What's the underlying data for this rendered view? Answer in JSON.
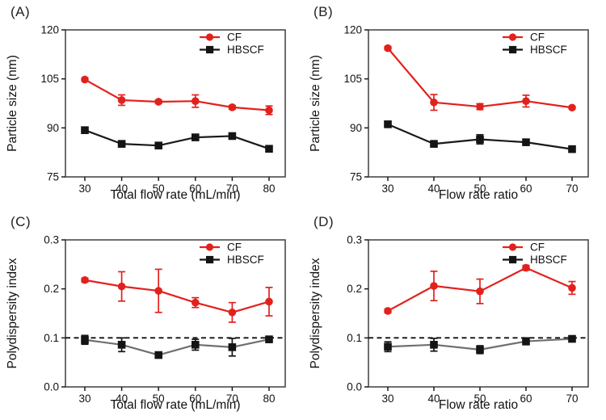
{
  "figure": {
    "background": "#ffffff",
    "colors": {
      "cf_red": "#e2211c",
      "hbscf_black": "#141414",
      "hbscf_gray_line": "#6f6f6f",
      "axis_frame": "#4a4a4a",
      "tick": "#1a1a1a",
      "text": "#111111",
      "dashed_reference": "#111111"
    }
  },
  "chart_data": [
    {
      "type": "line",
      "panel_label": "(A)",
      "xlabel": "Total flow rate (mL/min)",
      "ylabel": "Particle size (nm)",
      "x": [
        30,
        40,
        50,
        60,
        70,
        80
      ],
      "xtick_labels": [
        "30",
        "40",
        "50",
        "60",
        "70",
        "80"
      ],
      "ylim": [
        75,
        120
      ],
      "ytick_values": [
        75,
        90,
        105,
        120
      ],
      "ytick_labels": [
        "75",
        "90",
        "105",
        "120"
      ],
      "grid": false,
      "legend_position": "top-right",
      "legend": [
        "CF",
        "HBSCF"
      ],
      "dashed_y": null,
      "series": [
        {
          "name": "HBSCF",
          "marker": "square",
          "marker_color": "#141414",
          "line_color": "#1a1a1a",
          "values": [
            89.3,
            85.1,
            84.6,
            87.1,
            87.5,
            83.6
          ],
          "errors": [
            0.4,
            0.4,
            0.4,
            0.4,
            0.4,
            0.4
          ]
        },
        {
          "name": "CF",
          "marker": "circle",
          "marker_color": "#e2211c",
          "line_color": "#e2211c",
          "values": [
            104.8,
            98.5,
            98.0,
            98.2,
            96.3,
            95.4
          ],
          "errors": [
            0.5,
            1.6,
            0.5,
            1.9,
            0.6,
            1.3
          ]
        }
      ]
    },
    {
      "type": "line",
      "panel_label": "(B)",
      "xlabel": "Flow rate ratio",
      "ylabel": "Particle size (nm)",
      "x": [
        30,
        40,
        50,
        60,
        70
      ],
      "xtick_labels": [
        "30",
        "40",
        "50",
        "60",
        "70"
      ],
      "ylim": [
        75,
        120
      ],
      "ytick_values": [
        75,
        90,
        105,
        120
      ],
      "ytick_labels": [
        "75",
        "90",
        "105",
        "120"
      ],
      "grid": false,
      "legend_position": "top-right",
      "legend": [
        "CF",
        "HBSCF"
      ],
      "dashed_y": null,
      "series": [
        {
          "name": "HBSCF",
          "marker": "square",
          "marker_color": "#141414",
          "line_color": "#1a1a1a",
          "values": [
            91.1,
            85.1,
            86.5,
            85.6,
            83.5
          ],
          "errors": [
            0.4,
            0.4,
            1.4,
            0.5,
            0.9
          ]
        },
        {
          "name": "CF",
          "marker": "circle",
          "marker_color": "#e2211c",
          "line_color": "#e2211c",
          "values": [
            114.4,
            97.8,
            96.5,
            98.2,
            96.2
          ],
          "errors": [
            0.5,
            2.4,
            0.9,
            1.8,
            0.4
          ]
        }
      ]
    },
    {
      "type": "line",
      "panel_label": "(C)",
      "xlabel": "Total flow rate (mL/min)",
      "ylabel": "Polydispersity index",
      "x": [
        30,
        40,
        50,
        60,
        70,
        80
      ],
      "xtick_labels": [
        "30",
        "40",
        "50",
        "60",
        "70",
        "80"
      ],
      "ylim": [
        0,
        0.3
      ],
      "ytick_values": [
        0,
        0.1,
        0.2,
        0.3
      ],
      "ytick_labels": [
        "0.0",
        "0.1",
        "0.2",
        "0.3"
      ],
      "grid": false,
      "legend_position": "top-right",
      "legend": [
        "CF",
        "HBSCF"
      ],
      "dashed_y": 0.1,
      "series": [
        {
          "name": "HBSCF",
          "marker": "square",
          "marker_color": "#141414",
          "line_color": "#6f6f6f",
          "values": [
            0.096,
            0.086,
            0.065,
            0.086,
            0.081,
            0.097
          ],
          "errors": [
            0.009,
            0.014,
            0.004,
            0.011,
            0.018,
            0.004
          ]
        },
        {
          "name": "CF",
          "marker": "circle",
          "marker_color": "#e2211c",
          "line_color": "#e2211c",
          "values": [
            0.218,
            0.205,
            0.196,
            0.172,
            0.152,
            0.174
          ],
          "errors": [
            0.004,
            0.03,
            0.044,
            0.01,
            0.02,
            0.029
          ]
        }
      ]
    },
    {
      "type": "line",
      "panel_label": "(D)",
      "xlabel": "Flow rate ratio",
      "ylabel": "Polydispersity index",
      "x": [
        30,
        40,
        50,
        60,
        70
      ],
      "xtick_labels": [
        "30",
        "40",
        "50",
        "60",
        "70"
      ],
      "ylim": [
        0,
        0.3
      ],
      "ytick_values": [
        0,
        0.1,
        0.2,
        0.3
      ],
      "ytick_labels": [
        "0.0",
        "0.1",
        "0.2",
        "0.3"
      ],
      "grid": false,
      "legend_position": "top-right",
      "legend": [
        "CF",
        "HBSCF"
      ],
      "dashed_y": 0.1,
      "series": [
        {
          "name": "HBSCF",
          "marker": "square",
          "marker_color": "#141414",
          "line_color": "#6f6f6f",
          "values": [
            0.082,
            0.086,
            0.076,
            0.093,
            0.098
          ],
          "errors": [
            0.01,
            0.013,
            0.008,
            0.007,
            0.004
          ]
        },
        {
          "name": "CF",
          "marker": "circle",
          "marker_color": "#e2211c",
          "line_color": "#e2211c",
          "values": [
            0.155,
            0.206,
            0.195,
            0.243,
            0.202
          ],
          "errors": [
            0.004,
            0.03,
            0.025,
            0.005,
            0.013
          ]
        }
      ]
    }
  ]
}
